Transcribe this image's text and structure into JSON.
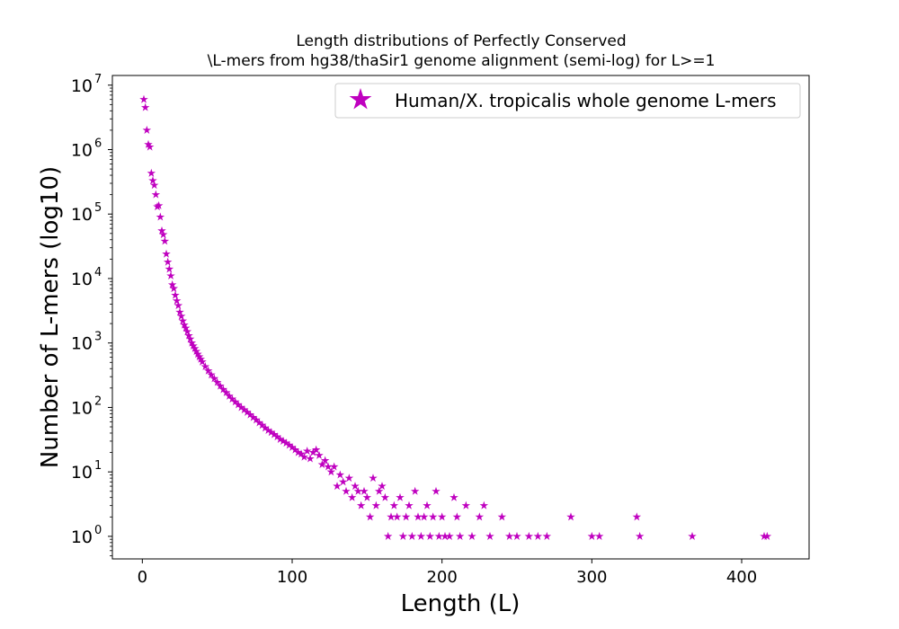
{
  "chart_data": {
    "type": "scatter",
    "title_lines": [
      "Length distributions of Perfectly Conserved",
      "\\L-mers from hg38/thaSir1 genome alignment (semi-log) for L>=1"
    ],
    "xlabel": "Length (L)",
    "ylabel": "Number of L-mers (log10)",
    "xlim": [
      -20,
      445
    ],
    "ylim_log10": [
      -0.35,
      7.15
    ],
    "yscale": "log",
    "x_ticks": [
      0,
      100,
      200,
      300,
      400
    ],
    "y_ticks": [
      {
        "exp": 0,
        "base": "10",
        "power": "0"
      },
      {
        "exp": 1,
        "base": "10",
        "power": "1"
      },
      {
        "exp": 2,
        "base": "10",
        "power": "2"
      },
      {
        "exp": 3,
        "base": "10",
        "power": "3"
      },
      {
        "exp": 4,
        "base": "10",
        "power": "4"
      },
      {
        "exp": 5,
        "base": "10",
        "power": "5"
      },
      {
        "exp": 6,
        "base": "10",
        "power": "6"
      },
      {
        "exp": 7,
        "base": "10",
        "power": "7"
      }
    ],
    "legend": {
      "position": "upper right"
    },
    "grid": false,
    "series": [
      {
        "name": "Human/X. tropicalis whole genome L-mers",
        "color": "#bf00bf",
        "marker": "star",
        "points": [
          [
            1,
            6000000
          ],
          [
            2,
            4500000
          ],
          [
            3,
            2000000
          ],
          [
            4,
            1200000
          ],
          [
            5,
            1100000
          ],
          [
            6,
            430000
          ],
          [
            7,
            330000
          ],
          [
            8,
            280000
          ],
          [
            9,
            200000
          ],
          [
            10,
            130000
          ],
          [
            11,
            135000
          ],
          [
            12,
            90000
          ],
          [
            13,
            55000
          ],
          [
            14,
            48000
          ],
          [
            15,
            38000
          ],
          [
            16,
            24000
          ],
          [
            17,
            18000
          ],
          [
            18,
            14000
          ],
          [
            19,
            11000
          ],
          [
            20,
            8000
          ],
          [
            21,
            7000
          ],
          [
            22,
            5500
          ],
          [
            23,
            4500
          ],
          [
            24,
            3800
          ],
          [
            25,
            3000
          ],
          [
            26,
            2600
          ],
          [
            27,
            2200
          ],
          [
            28,
            1900
          ],
          [
            29,
            1700
          ],
          [
            30,
            1500
          ],
          [
            31,
            1300
          ],
          [
            32,
            1150
          ],
          [
            33,
            1000
          ],
          [
            34,
            900
          ],
          [
            35,
            820
          ],
          [
            36,
            740
          ],
          [
            37,
            670
          ],
          [
            38,
            610
          ],
          [
            39,
            560
          ],
          [
            40,
            510
          ],
          [
            42,
            430
          ],
          [
            44,
            370
          ],
          [
            46,
            320
          ],
          [
            48,
            280
          ],
          [
            50,
            245
          ],
          [
            52,
            215
          ],
          [
            54,
            190
          ],
          [
            56,
            170
          ],
          [
            58,
            150
          ],
          [
            60,
            135
          ],
          [
            62,
            122
          ],
          [
            64,
            110
          ],
          [
            66,
            100
          ],
          [
            68,
            92
          ],
          [
            70,
            84
          ],
          [
            72,
            77
          ],
          [
            74,
            70
          ],
          [
            76,
            64
          ],
          [
            78,
            58
          ],
          [
            80,
            53
          ],
          [
            82,
            48
          ],
          [
            84,
            44
          ],
          [
            86,
            41
          ],
          [
            88,
            38
          ],
          [
            90,
            35
          ],
          [
            92,
            32
          ],
          [
            94,
            30
          ],
          [
            96,
            28
          ],
          [
            98,
            26
          ],
          [
            100,
            24
          ],
          [
            102,
            22
          ],
          [
            104,
            20
          ],
          [
            106,
            19
          ],
          [
            108,
            17
          ],
          [
            110,
            21
          ],
          [
            112,
            16
          ],
          [
            114,
            20
          ],
          [
            116,
            22
          ],
          [
            118,
            18
          ],
          [
            120,
            13
          ],
          [
            122,
            15
          ],
          [
            124,
            12
          ],
          [
            126,
            10
          ],
          [
            128,
            12
          ],
          [
            130,
            6
          ],
          [
            132,
            9
          ],
          [
            134,
            7
          ],
          [
            136,
            5
          ],
          [
            138,
            8
          ],
          [
            140,
            4
          ],
          [
            142,
            6
          ],
          [
            144,
            5
          ],
          [
            146,
            3
          ],
          [
            148,
            5
          ],
          [
            150,
            4
          ],
          [
            152,
            2
          ],
          [
            154,
            8
          ],
          [
            156,
            3
          ],
          [
            158,
            5
          ],
          [
            160,
            6
          ],
          [
            162,
            4
          ],
          [
            164,
            1
          ],
          [
            166,
            2
          ],
          [
            168,
            3
          ],
          [
            170,
            2
          ],
          [
            172,
            4
          ],
          [
            174,
            1
          ],
          [
            176,
            2
          ],
          [
            178,
            3
          ],
          [
            180,
            1
          ],
          [
            182,
            5
          ],
          [
            184,
            2
          ],
          [
            186,
            1
          ],
          [
            188,
            2
          ],
          [
            190,
            3
          ],
          [
            192,
            1
          ],
          [
            194,
            2
          ],
          [
            196,
            5
          ],
          [
            198,
            1
          ],
          [
            200,
            2
          ],
          [
            202,
            1
          ],
          [
            205,
            1
          ],
          [
            208,
            4
          ],
          [
            210,
            2
          ],
          [
            212,
            1
          ],
          [
            216,
            3
          ],
          [
            220,
            1
          ],
          [
            225,
            2
          ],
          [
            228,
            3
          ],
          [
            232,
            1
          ],
          [
            240,
            2
          ],
          [
            245,
            1
          ],
          [
            250,
            1
          ],
          [
            258,
            1
          ],
          [
            264,
            1
          ],
          [
            270,
            1
          ],
          [
            286,
            2
          ],
          [
            300,
            1
          ],
          [
            305,
            1
          ],
          [
            330,
            2
          ],
          [
            332,
            1
          ],
          [
            367,
            1
          ],
          [
            415,
            1
          ],
          [
            417,
            1
          ]
        ]
      }
    ]
  }
}
